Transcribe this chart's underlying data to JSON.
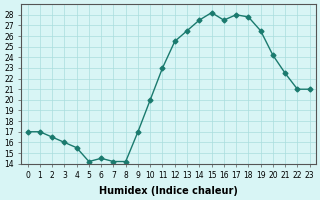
{
  "x": [
    0,
    1,
    2,
    3,
    4,
    5,
    6,
    7,
    8,
    9,
    10,
    11,
    12,
    13,
    14,
    15,
    16,
    17,
    18,
    19,
    20,
    21,
    22,
    23
  ],
  "y": [
    17.0,
    17.0,
    16.5,
    16.0,
    15.5,
    14.2,
    14.5,
    14.2,
    14.2,
    17.0,
    20.0,
    23.0,
    25.5,
    26.5,
    27.5,
    28.2,
    27.5,
    28.0,
    27.8,
    26.5,
    24.2,
    22.5,
    21.0,
    21.0
  ],
  "xlabel": "Humidex (Indice chaleur)",
  "ylabel": "",
  "line_color": "#1a7a6e",
  "marker": "D",
  "marker_size": 2.5,
  "bg_color": "#d8f5f5",
  "grid_color": "#aadddd",
  "ylim": [
    14,
    29
  ],
  "xlim": [
    -0.5,
    23.5
  ],
  "yticks": [
    14,
    15,
    16,
    17,
    18,
    19,
    20,
    21,
    22,
    23,
    24,
    25,
    26,
    27,
    28
  ],
  "xtick_labels": [
    "0",
    "1",
    "2",
    "3",
    "4",
    "5",
    "6",
    "7",
    "8",
    "9",
    "10",
    "11",
    "12",
    "13",
    "14",
    "15",
    "16",
    "17",
    "18",
    "19",
    "20",
    "21",
    "22",
    "23"
  ]
}
